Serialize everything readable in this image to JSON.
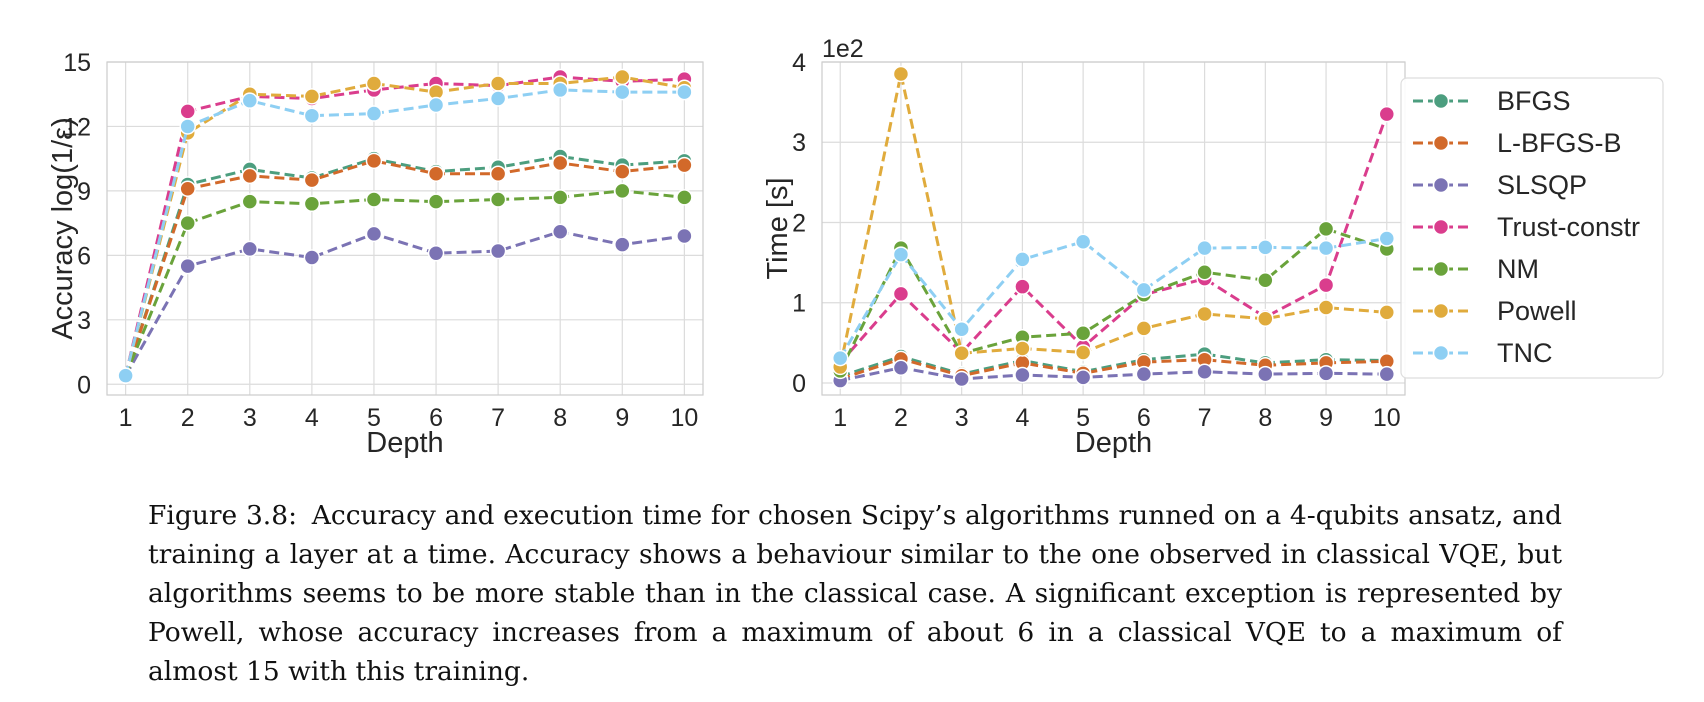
{
  "chart_data": [
    {
      "type": "line",
      "xlabel": "Depth",
      "ylabel": "Accuracy log(1/ε)",
      "x": [
        1,
        2,
        3,
        4,
        5,
        6,
        7,
        8,
        9,
        10
      ],
      "xlim": [
        0.7,
        10.3
      ],
      "ylim": [
        -0.5,
        15
      ],
      "yticks": [
        0,
        3,
        6,
        9,
        12,
        15
      ],
      "grid": true,
      "series": [
        {
          "name": "BFGS",
          "color": "#4c9e7f",
          "values": [
            0.4,
            9.3,
            10.0,
            9.6,
            10.5,
            9.9,
            10.1,
            10.6,
            10.2,
            10.4
          ]
        },
        {
          "name": "L-BFGS-B",
          "color": "#d2692a",
          "values": [
            0.4,
            9.1,
            9.7,
            9.5,
            10.4,
            9.8,
            9.8,
            10.3,
            9.9,
            10.2
          ]
        },
        {
          "name": "SLSQP",
          "color": "#7b73b4",
          "values": [
            0.4,
            5.5,
            6.3,
            5.9,
            7.0,
            6.1,
            6.2,
            7.1,
            6.5,
            6.9
          ]
        },
        {
          "name": "Trust-constr",
          "color": "#da3d8d",
          "values": [
            0.4,
            12.7,
            13.4,
            13.3,
            13.7,
            14.0,
            13.9,
            14.3,
            14.1,
            14.2
          ]
        },
        {
          "name": "NM",
          "color": "#6aa33b",
          "values": [
            0.4,
            7.5,
            8.5,
            8.4,
            8.6,
            8.5,
            8.6,
            8.7,
            9.0,
            8.7
          ]
        },
        {
          "name": "Powell",
          "color": "#e0ab3c",
          "values": [
            0.4,
            11.7,
            13.5,
            13.4,
            14.0,
            13.6,
            14.0,
            14.0,
            14.3,
            13.8
          ]
        },
        {
          "name": "TNC",
          "color": "#8ecff3",
          "values": [
            0.4,
            12.0,
            13.2,
            12.5,
            12.6,
            13.0,
            13.3,
            13.7,
            13.6,
            13.6
          ]
        }
      ]
    },
    {
      "type": "line",
      "xlabel": "Depth",
      "ylabel": "Time [s]",
      "offset_label": "1e2",
      "x": [
        1,
        2,
        3,
        4,
        5,
        6,
        7,
        8,
        9,
        10
      ],
      "xlim": [
        0.7,
        10.3
      ],
      "ylim": [
        -0.15,
        4.0
      ],
      "yticks": [
        0,
        1,
        2,
        3,
        4
      ],
      "grid": true,
      "legend_position": "right",
      "series": [
        {
          "name": "BFGS",
          "color": "#4c9e7f",
          "values": [
            0.08,
            0.33,
            0.11,
            0.28,
            0.14,
            0.29,
            0.36,
            0.25,
            0.29,
            0.28
          ]
        },
        {
          "name": "L-BFGS-B",
          "color": "#d2692a",
          "values": [
            0.05,
            0.3,
            0.09,
            0.25,
            0.12,
            0.26,
            0.29,
            0.22,
            0.25,
            0.27
          ]
        },
        {
          "name": "SLSQP",
          "color": "#7b73b4",
          "values": [
            0.03,
            0.19,
            0.05,
            0.1,
            0.07,
            0.11,
            0.14,
            0.11,
            0.12,
            0.11
          ]
        },
        {
          "name": "Trust-constr",
          "color": "#da3d8d",
          "values": [
            0.25,
            1.11,
            0.38,
            1.2,
            0.45,
            1.1,
            1.3,
            0.82,
            1.22,
            3.35
          ]
        },
        {
          "name": "NM",
          "color": "#6aa33b",
          "values": [
            0.15,
            1.68,
            0.37,
            0.57,
            0.62,
            1.1,
            1.38,
            1.28,
            1.92,
            1.67
          ]
        },
        {
          "name": "Powell",
          "color": "#e0ab3c",
          "values": [
            0.2,
            3.85,
            0.37,
            0.43,
            0.38,
            0.68,
            0.86,
            0.8,
            0.94,
            0.88
          ]
        },
        {
          "name": "TNC",
          "color": "#8ecff3",
          "values": [
            0.31,
            1.6,
            0.67,
            1.54,
            1.76,
            1.16,
            1.68,
            1.69,
            1.68,
            1.8
          ]
        }
      ]
    }
  ],
  "caption": {
    "number": "Figure 3.8:",
    "text": "Accuracy and execution time for chosen Scipy’s algorithms runned on a 4-qubits ansatz, and training a layer at a time. Accuracy shows a behaviour similar to the one observed in classical VQE, but algorithms seems to be more stable than in the classical case. A significant exception is represented by Powell, whose accuracy increases from a maximum of about 6 in a classical VQE to a maximum of almost 15 with this training."
  }
}
